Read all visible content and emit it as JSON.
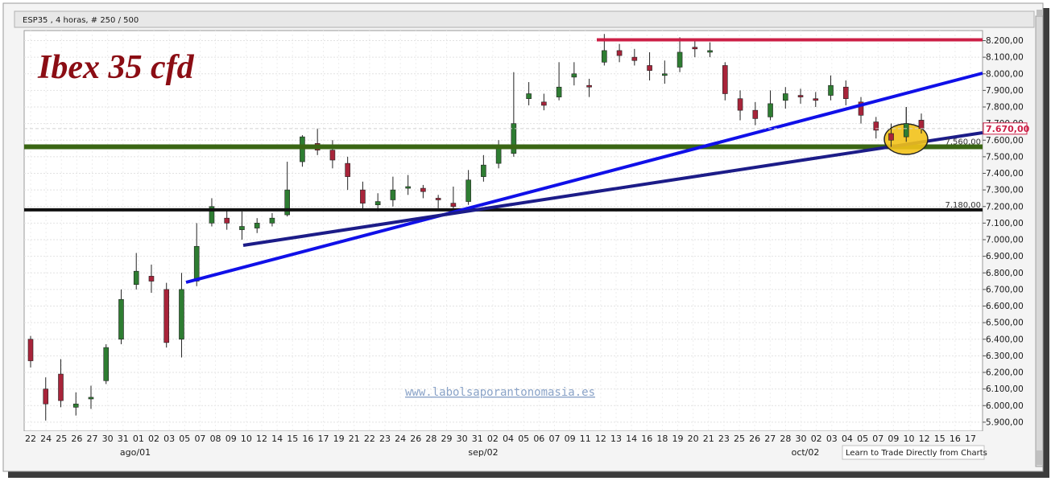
{
  "header": {
    "symbol_text": "ESP35 , 4 horas, # 250 / 500",
    "chart_title": "Ibex 35 cfd"
  },
  "watermark": "www.labolsaporantonomasia.es",
  "footer_link": "Learn to Trade Directly from Charts",
  "colors": {
    "up_candle": "#2e7d32",
    "down_candle": "#a8243a",
    "resistance": "#cc1f46",
    "support_green": "#3a6614",
    "support_black": "#111111",
    "trend_blue": "#1010e8",
    "trend_navy": "#1c1c88",
    "highlight": "#f2c21a",
    "title": "#8b0d14",
    "watermark": "#8aa3c8"
  },
  "chart_data": {
    "type": "candlestick",
    "title": "Ibex 35 cfd",
    "instrument": "ESP35",
    "timeframe": "4 horas",
    "ylim": [
      5850,
      8260
    ],
    "y_ticks": [
      5900,
      6000,
      6100,
      6200,
      6300,
      6400,
      6500,
      6600,
      6700,
      6800,
      6900,
      7000,
      7100,
      7200,
      7300,
      7400,
      7500,
      7600,
      7700,
      7800,
      7900,
      8000,
      8100,
      8200
    ],
    "y_tick_labels": [
      "5.900,00",
      "6.000,00",
      "6.100,00",
      "6.200,00",
      "6.300,00",
      "6.400,00",
      "6.500,00",
      "6.600,00",
      "6.700,00",
      "6.800,00",
      "6.900,00",
      "7.000,00",
      "7.100,00",
      "7.200,00",
      "7.300,00",
      "7.400,00",
      "7.500,00",
      "7.600,00",
      "7.700,00",
      "7.800,00",
      "7.900,00",
      "8.000,00",
      "8.100,00",
      "8.200,00"
    ],
    "x_tick_labels": [
      "22",
      "24",
      "25",
      "26",
      "27",
      "30",
      "31",
      "01",
      "02",
      "03",
      "05",
      "07",
      "08",
      "09",
      "10",
      "12",
      "14",
      "15",
      "16",
      "17",
      "19",
      "21",
      "22",
      "23",
      "24",
      "26",
      "28",
      "29",
      "30",
      "31",
      "02",
      "04",
      "05",
      "06",
      "07",
      "09",
      "11",
      "12",
      "13",
      "14",
      "16",
      "18",
      "19",
      "20",
      "21",
      "23",
      "25",
      "26",
      "27",
      "28",
      "30",
      "02",
      "03",
      "04",
      "05",
      "07",
      "09",
      "10",
      "12",
      "15",
      "16",
      "17"
    ],
    "month_labels": [
      "ago/01",
      "sep/02",
      "oct/02"
    ],
    "price_markers": [
      {
        "value": 7670,
        "label": "7.670,00",
        "style": "last-price"
      },
      {
        "value": 7560,
        "label": "7.560,00",
        "style": "level"
      },
      {
        "value": 7180,
        "label": "7.180,00",
        "style": "level"
      }
    ],
    "horizontal_lines": [
      {
        "value": 8205,
        "color": "resistance"
      },
      {
        "value": 7560,
        "color": "support_green"
      },
      {
        "value": 7180,
        "color": "support_black"
      }
    ],
    "trendlines": [
      {
        "from": [
          5.5,
          6740
        ],
        "to": [
          32,
          8000
        ],
        "color": "trend_blue"
      },
      {
        "from": [
          7.5,
          6960
        ],
        "to": [
          32,
          7650
        ],
        "color": "trend_navy"
      }
    ],
    "highlight": {
      "x": 28.35,
      "y": 7575
    },
    "candles": [
      [
        6400,
        6270,
        6420,
        6230
      ],
      [
        6100,
        6010,
        6170,
        5910
      ],
      [
        6190,
        6030,
        6280,
        5990
      ],
      [
        5990,
        6010,
        6080,
        5940
      ],
      [
        6040,
        6050,
        6120,
        5980
      ],
      [
        6150,
        6350,
        6370,
        6130
      ],
      [
        6400,
        6640,
        6700,
        6370
      ],
      [
        6730,
        6810,
        6920,
        6700
      ],
      [
        6780,
        6750,
        6850,
        6680
      ],
      [
        6700,
        6380,
        6740,
        6350
      ],
      [
        6400,
        6700,
        6800,
        6290
      ],
      [
        6750,
        6960,
        7100,
        6720
      ],
      [
        7100,
        7200,
        7250,
        7080
      ],
      [
        7130,
        7100,
        7180,
        7060
      ],
      [
        7060,
        7080,
        7170,
        7000
      ],
      [
        7070,
        7100,
        7130,
        7040
      ],
      [
        7100,
        7130,
        7160,
        7080
      ],
      [
        7150,
        7300,
        7470,
        7140
      ],
      [
        7470,
        7620,
        7630,
        7440
      ],
      [
        7580,
        7540,
        7670,
        7510
      ],
      [
        7540,
        7480,
        7600,
        7430
      ],
      [
        7460,
        7380,
        7500,
        7300
      ],
      [
        7300,
        7220,
        7350,
        7180
      ],
      [
        7210,
        7230,
        7280,
        7170
      ],
      [
        7240,
        7300,
        7380,
        7200
      ],
      [
        7310,
        7320,
        7390,
        7270
      ],
      [
        7310,
        7290,
        7330,
        7250
      ],
      [
        7250,
        7240,
        7270,
        7190
      ],
      [
        7220,
        7200,
        7320,
        7170
      ],
      [
        7230,
        7360,
        7420,
        7210
      ],
      [
        7380,
        7450,
        7510,
        7350
      ],
      [
        7460,
        7550,
        7600,
        7430
      ],
      [
        7520,
        7700,
        8010,
        7500
      ],
      [
        7850,
        7880,
        7950,
        7810
      ],
      [
        7830,
        7810,
        7880,
        7780
      ],
      [
        7860,
        7920,
        8070,
        7840
      ],
      [
        7980,
        8000,
        8070,
        7930
      ],
      [
        7930,
        7920,
        7970,
        7860
      ],
      [
        8070,
        8140,
        8240,
        8050
      ],
      [
        8140,
        8110,
        8180,
        8070
      ],
      [
        8100,
        8080,
        8150,
        8050
      ],
      [
        8050,
        8020,
        8130,
        7960
      ],
      [
        7990,
        8000,
        8080,
        7940
      ],
      [
        8040,
        8130,
        8220,
        8010
      ],
      [
        8160,
        8150,
        8210,
        8100
      ],
      [
        8130,
        8140,
        8190,
        8100
      ],
      [
        8050,
        7880,
        8070,
        7840
      ],
      [
        7850,
        7780,
        7900,
        7720
      ],
      [
        7780,
        7730,
        7830,
        7690
      ],
      [
        7740,
        7820,
        7900,
        7720
      ],
      [
        7840,
        7880,
        7920,
        7790
      ],
      [
        7870,
        7860,
        7910,
        7820
      ],
      [
        7850,
        7840,
        7890,
        7800
      ],
      [
        7870,
        7930,
        7990,
        7840
      ],
      [
        7920,
        7850,
        7960,
        7810
      ],
      [
        7830,
        7750,
        7860,
        7700
      ],
      [
        7710,
        7660,
        7740,
        7610
      ],
      [
        7640,
        7600,
        7700,
        7560
      ],
      [
        7620,
        7700,
        7800,
        7590
      ],
      [
        7720,
        7670,
        7760,
        7640
      ]
    ]
  }
}
